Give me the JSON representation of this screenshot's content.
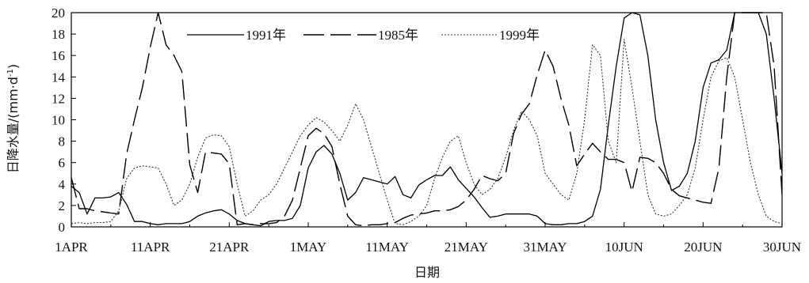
{
  "chart_data": {
    "type": "line",
    "title": "",
    "xlabel": "日期",
    "ylabel": "日降水量/(mm·d-1)",
    "ylabel_prefix": "日降水量/(mm·d",
    "ylabel_sup": "-1",
    "ylabel_suffix": ")",
    "ylim": [
      0,
      20
    ],
    "y_ticks": [
      0,
      2,
      4,
      6,
      8,
      10,
      12,
      14,
      16,
      18,
      20
    ],
    "x_range": [
      1,
      91
    ],
    "x_ticks": [
      {
        "x": 1,
        "label": "1APR"
      },
      {
        "x": 11,
        "label": "11APR"
      },
      {
        "x": 21,
        "label": "21APR"
      },
      {
        "x": 31,
        "label": "1MAY"
      },
      {
        "x": 41,
        "label": "11MAY"
      },
      {
        "x": 51,
        "label": "21MAY"
      },
      {
        "x": 61,
        "label": "31MAY"
      },
      {
        "x": 71,
        "label": "10JUN"
      },
      {
        "x": 81,
        "label": "20JUN"
      },
      {
        "x": 91,
        "label": "30JUN"
      }
    ],
    "grid": false,
    "legend_position": "top",
    "series": [
      {
        "name": "1991年",
        "style": "solid",
        "color": "#000000",
        "values": [
          3.8,
          3.2,
          1.2,
          2.7,
          2.7,
          2.8,
          3.2,
          2.1,
          0.5,
          0.5,
          0.3,
          0.2,
          0.3,
          0.3,
          0.3,
          0.5,
          1.0,
          1.3,
          1.5,
          1.6,
          1.2,
          0.6,
          0.3,
          0.2,
          0.1,
          0.5,
          0.6,
          0.6,
          0.8,
          2.0,
          5.5,
          7.0,
          7.6,
          6.8,
          5.0,
          2.5,
          3.2,
          4.6,
          4.4,
          4.2,
          4.0,
          4.7,
          3.0,
          2.7,
          3.9,
          4.4,
          4.8,
          4.8,
          5.6,
          4.4,
          3.6,
          2.8,
          1.8,
          0.9,
          1.0,
          1.2,
          1.2,
          1.2,
          1.2,
          1.0,
          0.3,
          0.2,
          0.2,
          0.3,
          0.3,
          0.5,
          1.0,
          3.5,
          9.5,
          15.0,
          19.5,
          20.0,
          19.8,
          16.0,
          10.0,
          6.0,
          3.4,
          3.8,
          5.0,
          8.0,
          13.0,
          15.3,
          15.6,
          16.5,
          20.0,
          20.0,
          20.0,
          20.0,
          18.0,
          12.0,
          5.0
        ]
      },
      {
        "name": "1985年",
        "style": "longdash",
        "color": "#000000",
        "values": [
          4.6,
          1.7,
          1.7,
          1.5,
          1.4,
          1.3,
          1.2,
          6.8,
          10.0,
          13.0,
          16.8,
          20.0,
          17.0,
          16.0,
          14.5,
          5.8,
          3.2,
          7.0,
          6.9,
          6.8,
          5.9,
          0.2,
          0.3,
          0.2,
          0.3,
          0.3,
          0.4,
          1.0,
          2.5,
          5.5,
          8.5,
          9.2,
          8.7,
          7.5,
          4.0,
          1.0,
          0.2,
          0.1,
          0.2,
          0.2,
          0.3,
          0.4,
          0.8,
          1.1,
          1.2,
          1.3,
          1.5,
          1.5,
          1.6,
          1.9,
          2.5,
          3.5,
          4.8,
          4.5,
          4.3,
          5.0,
          8.7,
          10.5,
          11.5,
          14.2,
          16.5,
          15.0,
          12.0,
          9.5,
          5.7,
          6.8,
          7.8,
          7.0,
          6.3,
          6.3,
          6.0,
          3.3,
          6.5,
          6.4,
          6.0,
          5.0,
          3.5,
          2.9,
          2.7,
          2.5,
          2.3,
          2.2,
          5.5,
          14.0,
          20.0,
          20.0,
          20.0,
          20.0,
          20.0,
          15.0,
          3.0
        ]
      },
      {
        "name": "1999年",
        "style": "dotted",
        "color": "#333333",
        "values": [
          0.3,
          0.4,
          0.3,
          0.4,
          0.4,
          0.5,
          1.5,
          4.5,
          5.5,
          5.7,
          5.6,
          5.5,
          4.0,
          2.0,
          2.5,
          4.0,
          6.5,
          8.3,
          8.6,
          8.5,
          7.5,
          4.0,
          1.0,
          1.5,
          2.5,
          3.0,
          4.0,
          5.5,
          7.0,
          8.5,
          9.5,
          10.2,
          9.8,
          9.0,
          8.0,
          9.5,
          11.5,
          10.0,
          7.5,
          5.0,
          2.5,
          0.3,
          0.2,
          0.5,
          1.0,
          2.0,
          4.5,
          6.5,
          8.0,
          8.5,
          6.0,
          4.0,
          3.0,
          3.5,
          4.5,
          6.5,
          9.0,
          10.8,
          10.0,
          8.5,
          5.0,
          4.0,
          3.0,
          2.5,
          5.0,
          10.0,
          17.0,
          16.0,
          8.0,
          6.0,
          17.5,
          13.0,
          8.0,
          3.0,
          1.2,
          1.0,
          1.2,
          2.0,
          3.0,
          5.5,
          10.0,
          14.0,
          15.5,
          15.8,
          14.0,
          10.0,
          6.0,
          3.0,
          1.0,
          0.5,
          0.3
        ]
      }
    ]
  }
}
